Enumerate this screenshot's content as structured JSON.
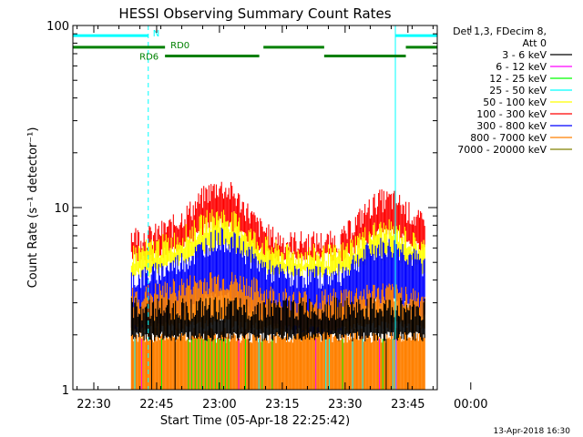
{
  "chart_data": {
    "type": "line",
    "title": "HESSI Observing Summary Count Rates",
    "xlabel": "Start Time (05-Apr-18 22:25:42)",
    "ylabel": "Count Rate (s⁻¹ detector⁻¹)",
    "yscale": "log",
    "ylim": [
      1,
      100
    ],
    "xlim_minutes": [
      -1,
      86
    ],
    "x_ticks": [
      {
        "min": 4,
        "label": "22:30"
      },
      {
        "min": 19,
        "label": "22:45"
      },
      {
        "min": 34,
        "label": "23:00"
      },
      {
        "min": 49,
        "label": "23:15"
      },
      {
        "min": 64,
        "label": "23:30"
      },
      {
        "min": 79,
        "label": "23:45"
      },
      {
        "min": 94,
        "label": "00:00"
      }
    ],
    "y_ticks": [
      {
        "value": 1,
        "label": "1"
      },
      {
        "value": 10,
        "label": "10"
      },
      {
        "value": 100,
        "label": "100"
      }
    ],
    "legend": {
      "header": [
        "Det 1,3, FDecim 8,",
        "Att 0"
      ],
      "placement": "right",
      "entries": [
        {
          "label": "3 - 6 keV",
          "color": "#000000"
        },
        {
          "label": "6 - 12 keV",
          "color": "#ff00ff"
        },
        {
          "label": "12 - 25 keV",
          "color": "#00ff00"
        },
        {
          "label": "25 - 50 keV",
          "color": "#00ffff"
        },
        {
          "label": "50 - 100 keV",
          "color": "#ffff00"
        },
        {
          "label": "100 - 300 keV",
          "color": "#ff0000"
        },
        {
          "label": "300 - 800 keV",
          "color": "#0000ff"
        },
        {
          "label": "800 - 7000 keV",
          "color": "#ff8000"
        },
        {
          "label": "7000 - 20000 keV",
          "color": "#808000"
        }
      ]
    },
    "data_start_min": 13,
    "data_end_min": 83,
    "series": [
      {
        "name": "100 - 300 keV",
        "color": "#ff0000",
        "x": [
          13,
          18,
          23,
          28,
          31,
          34,
          37,
          40,
          43,
          46,
          50,
          54,
          58,
          62,
          64,
          66,
          68,
          70,
          72,
          74,
          76,
          78,
          80,
          83
        ],
        "y_low": [
          5.5,
          5.5,
          6,
          7,
          8,
          8.5,
          8,
          7,
          6,
          5.5,
          5.5,
          5.5,
          5.5,
          5.5,
          5.5,
          6,
          6.5,
          7,
          7.5,
          7.5,
          7.5,
          7,
          6.5,
          6
        ],
        "y_high": [
          7,
          7,
          8,
          10,
          12,
          13,
          12,
          10,
          8,
          7,
          6.5,
          6.5,
          6.5,
          6.5,
          7,
          8,
          9,
          10,
          11,
          11,
          11,
          10,
          9,
          8
        ]
      },
      {
        "name": "50 - 100 keV",
        "color": "#ffff00",
        "x": [
          13,
          18,
          23,
          28,
          31,
          34,
          37,
          40,
          43,
          46,
          50,
          54,
          58,
          62,
          64,
          66,
          68,
          70,
          72,
          74,
          76,
          78,
          80,
          83
        ],
        "y_low": [
          4.5,
          4.5,
          5,
          5.5,
          6,
          6.5,
          6,
          5.5,
          5,
          4.5,
          4.5,
          4.5,
          4.5,
          4.5,
          4.5,
          4.8,
          5,
          5.5,
          5.5,
          5.5,
          5.5,
          5,
          5,
          4.5
        ],
        "y_high": [
          5.5,
          6,
          6.5,
          7.5,
          8.5,
          9,
          8.5,
          7.5,
          6.5,
          6,
          5.5,
          5.5,
          5.5,
          5.5,
          5.8,
          6.2,
          6.8,
          7.2,
          7.5,
          7.5,
          7.5,
          7,
          6.5,
          6
        ]
      },
      {
        "name": "300 - 800 keV",
        "color": "#0000ff",
        "x": [
          13,
          18,
          23,
          28,
          31,
          34,
          37,
          40,
          43,
          46,
          50,
          54,
          58,
          62,
          64,
          66,
          68,
          70,
          72,
          74,
          76,
          78,
          80,
          83
        ],
        "y_low": [
          2.2,
          2.4,
          2.6,
          3,
          3.3,
          3.5,
          3.3,
          3,
          2.6,
          2.4,
          2.2,
          2.2,
          2.2,
          2.2,
          2.4,
          2.6,
          2.8,
          3,
          3.1,
          3.1,
          3.1,
          3,
          2.8,
          2.5
        ],
        "y_high": [
          4,
          4.3,
          4.8,
          5.5,
          6.3,
          6.8,
          6.5,
          5.8,
          5,
          4.5,
          4.2,
          4.2,
          4.2,
          4.2,
          4.5,
          5,
          5.3,
          5.8,
          6,
          6,
          6,
          5.8,
          5.3,
          4.8
        ]
      },
      {
        "name": "800 - 7000 keV",
        "color": "#ff8000",
        "x": [
          13,
          20,
          28,
          34,
          40,
          46,
          52,
          58,
          64,
          70,
          76,
          83
        ],
        "y_low": [
          2.2,
          2.2,
          2.3,
          2.4,
          2.3,
          2.2,
          2.2,
          2.2,
          2.2,
          2.3,
          2.3,
          2.2
        ],
        "y_high": [
          3.2,
          3.4,
          3.8,
          4,
          3.8,
          3.3,
          3.1,
          3.1,
          3.2,
          3.4,
          3.4,
          3.2
        ]
      },
      {
        "name": "3 - 6 keV",
        "color": "#000000",
        "x": [
          13,
          83
        ],
        "y_low": [
          2,
          2
        ],
        "y_high": [
          2.8,
          2.8
        ]
      }
    ],
    "low_band_fill": {
      "color": "#ff8000",
      "y_low": 1,
      "y_high": 2.0
    },
    "annotations": [
      {
        "text": "N",
        "color": "#00ffff"
      },
      {
        "text": "RD0",
        "color": "#008000"
      },
      {
        "text": "RD6",
        "color": "#008000"
      }
    ],
    "flag_bars": [
      {
        "name": "N",
        "color": "#00ffff",
        "y": 88,
        "segments": [
          [
            -1,
            17
          ],
          [
            76,
            86
          ]
        ]
      },
      {
        "name": "RD0",
        "color": "#008000",
        "y": 76,
        "segments": [
          [
            -1,
            21
          ],
          [
            44.5,
            59
          ],
          [
            78.5,
            86
          ]
        ]
      },
      {
        "name": "RD6",
        "color": "#008000",
        "y": 68,
        "segments": [
          [
            21,
            43.5
          ],
          [
            59,
            78.5
          ]
        ]
      }
    ],
    "vlines": [
      {
        "x": -1,
        "color": "#00ffff",
        "style": "solid"
      },
      {
        "x": 17,
        "color": "#00ffff",
        "style": "dashed"
      },
      {
        "x": 76,
        "color": "#00ffff",
        "style": "solid"
      },
      {
        "x": 86,
        "color": "#00ffff",
        "style": "dashed"
      }
    ]
  },
  "footer": {
    "date": "13-Apr-2018 16:30"
  }
}
